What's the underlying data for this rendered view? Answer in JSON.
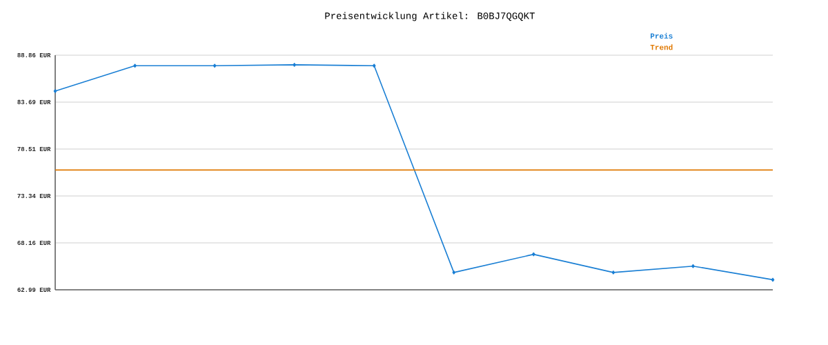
{
  "chart_data": {
    "type": "line",
    "title": "Preisentwicklung Artikel: B0BJ7QGQKT",
    "categories": [
      null,
      null,
      null,
      null,
      null,
      null,
      null,
      null,
      null,
      null
    ],
    "series": [
      {
        "name": "Preis",
        "color": "#1a7fd4",
        "marker": "diamond",
        "values": [
          84.9,
          87.7,
          87.7,
          87.8,
          87.7,
          64.9,
          66.9,
          64.9,
          65.6,
          64.1
        ]
      },
      {
        "name": "Trend",
        "color": "#e07800",
        "marker": "none",
        "values": [
          76.2,
          76.2,
          76.2,
          76.2,
          76.2,
          76.2,
          76.2,
          76.2,
          76.2,
          76.2
        ]
      }
    ],
    "ylim": [
      62.99,
      88.86
    ],
    "yticks": [
      {
        "value": 62.99,
        "label": "62.99 EUR"
      },
      {
        "value": 68.16,
        "label": "68.16 EUR"
      },
      {
        "value": 73.34,
        "label": "73.34 EUR"
      },
      {
        "value": 78.51,
        "label": "78.51 EUR"
      },
      {
        "value": 83.69,
        "label": "83.69 EUR"
      },
      {
        "value": 88.86,
        "label": "88.86 EUR"
      }
    ],
    "grid": "y",
    "legend": "top right",
    "tick_labels": "y",
    "line_style": "solid"
  }
}
